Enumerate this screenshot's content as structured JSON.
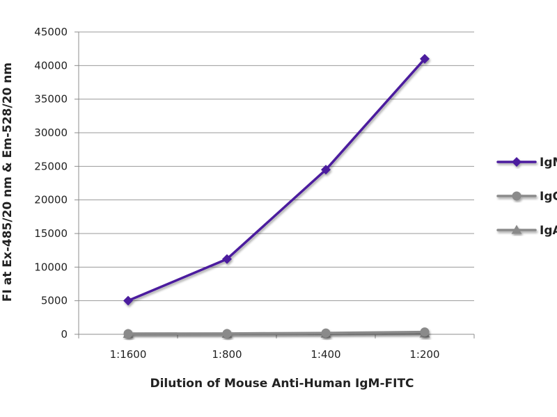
{
  "chart_data": {
    "type": "line",
    "title": "",
    "xlabel": "Dilution of Mouse Anti-Human IgM-FITC",
    "ylabel": "FI at Ex-485/20 nm & Em-528/20 nm",
    "categories": [
      "1:1600",
      "1:800",
      "1:400",
      "1:200"
    ],
    "ylim": [
      0,
      45000
    ],
    "yticks": [
      0,
      5000,
      10000,
      15000,
      20000,
      25000,
      30000,
      35000,
      40000,
      45000
    ],
    "grid": true,
    "legend_position": "right",
    "series": [
      {
        "name": "IgM",
        "values": [
          5000,
          11200,
          24500,
          41000
        ],
        "color": "#4b1a9e",
        "marker": "diamond"
      },
      {
        "name": "IgG",
        "values": [
          100,
          120,
          200,
          350
        ],
        "color": "#8a8a8a",
        "marker": "circle"
      },
      {
        "name": "IgA",
        "values": [
          50,
          60,
          80,
          100
        ],
        "color": "#8a8a8a",
        "marker": "triangle"
      }
    ]
  }
}
